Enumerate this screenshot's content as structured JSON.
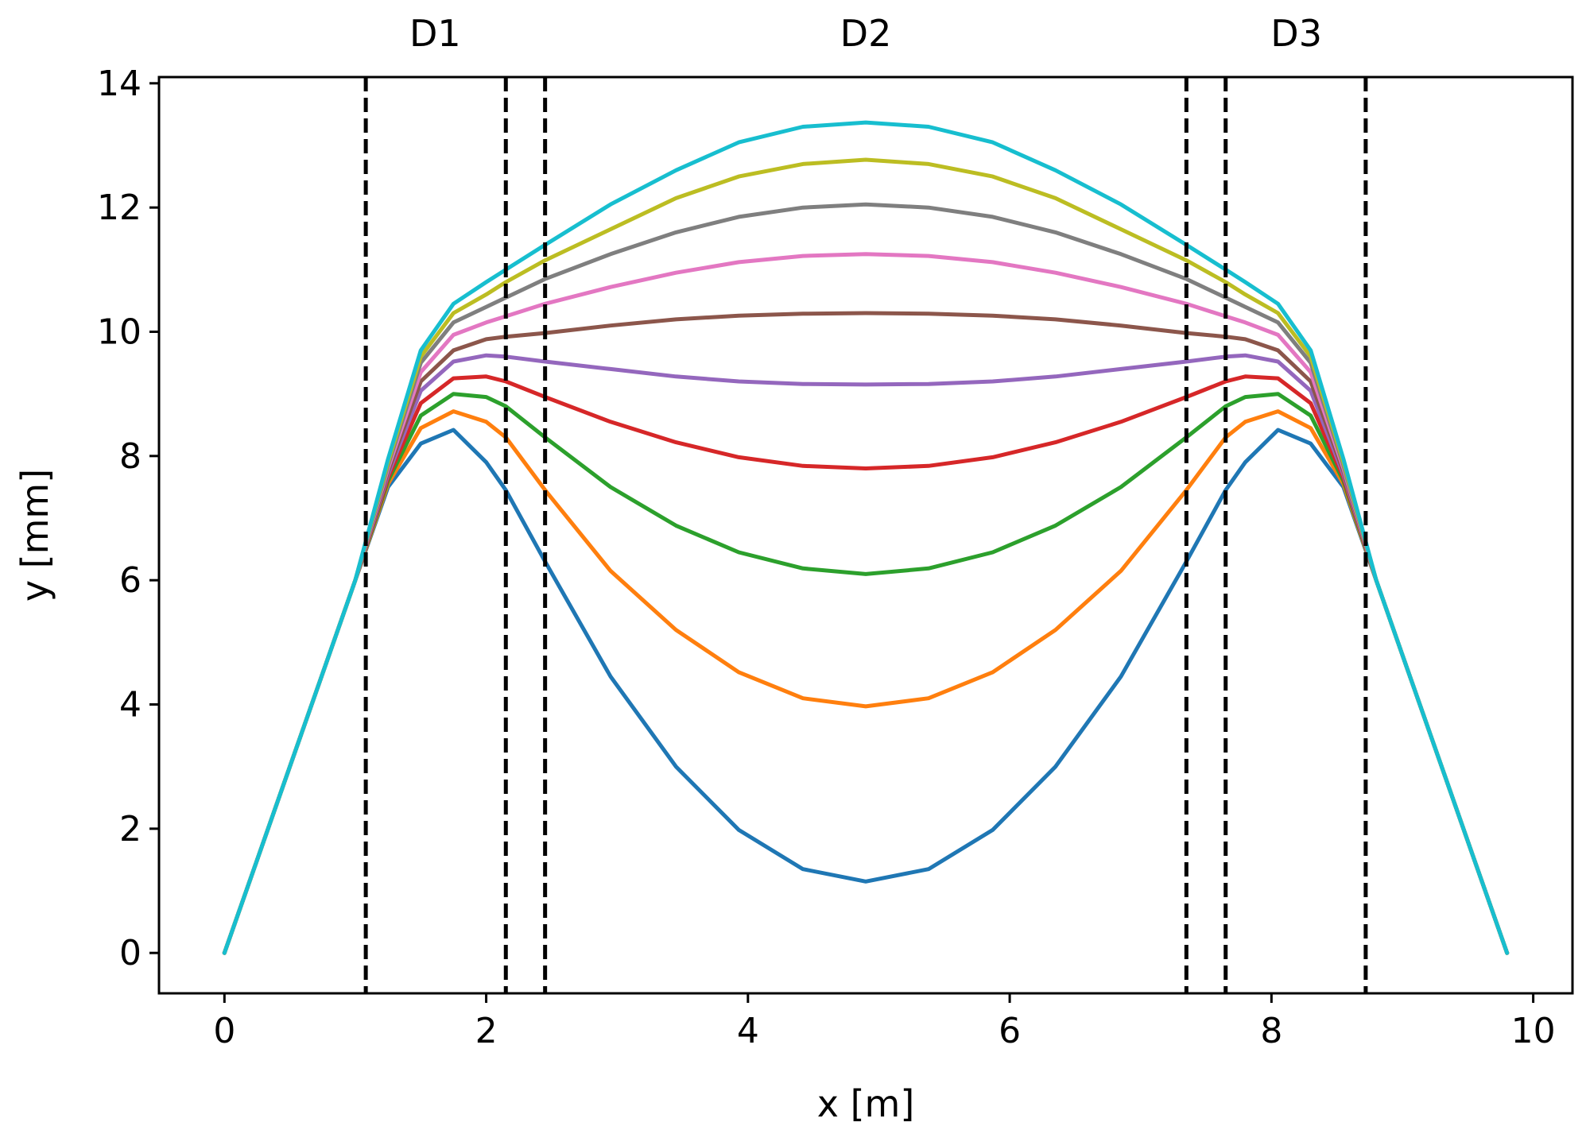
{
  "chart_data": {
    "type": "line",
    "title": "",
    "xlabel": "x [m]",
    "ylabel": "y [mm]",
    "xlim": [
      -0.5,
      10.3
    ],
    "ylim": [
      -0.65,
      14.1
    ],
    "xticks": [
      "0",
      "2",
      "4",
      "6",
      "8",
      "10"
    ],
    "yticks": [
      "0",
      "2",
      "4",
      "6",
      "8",
      "10",
      "12",
      "14"
    ],
    "grid": false,
    "legend": "none",
    "x": [
      0,
      0.25,
      0.5,
      0.75,
      1.0,
      1.25,
      1.5,
      1.75,
      2.0,
      2.15,
      2.45,
      2.95,
      3.45,
      3.93,
      4.42,
      4.9,
      5.38,
      5.87,
      6.35,
      6.85,
      7.35,
      7.65,
      7.8,
      8.05,
      8.3,
      8.55,
      8.8,
      9.05,
      9.3,
      9.55,
      9.8
    ],
    "series": [
      {
        "color": "#1f77b4",
        "values": [
          0,
          1.5,
          3.0,
          4.5,
          6.0,
          7.5,
          8.2,
          8.42,
          7.9,
          7.45,
          6.3,
          4.45,
          3.0,
          1.98,
          1.35,
          1.15,
          1.35,
          1.98,
          3.0,
          4.45,
          6.3,
          7.45,
          7.9,
          8.42,
          8.2,
          7.5,
          6.0,
          4.5,
          3.0,
          1.5,
          0
        ]
      },
      {
        "color": "#ff7f0e",
        "values": [
          0,
          1.5,
          3.0,
          4.5,
          6.0,
          7.55,
          8.45,
          8.72,
          8.55,
          8.3,
          7.45,
          6.15,
          5.2,
          4.52,
          4.1,
          3.97,
          4.1,
          4.52,
          5.2,
          6.15,
          7.45,
          8.3,
          8.55,
          8.72,
          8.45,
          7.55,
          6.0,
          4.5,
          3.0,
          1.5,
          0
        ]
      },
      {
        "color": "#2ca02c",
        "values": [
          0,
          1.5,
          3.0,
          4.5,
          6.0,
          7.6,
          8.65,
          9.0,
          8.95,
          8.8,
          8.3,
          7.5,
          6.88,
          6.45,
          6.19,
          6.1,
          6.19,
          6.45,
          6.88,
          7.5,
          8.3,
          8.8,
          8.95,
          9.0,
          8.65,
          7.6,
          6.0,
          4.5,
          3.0,
          1.5,
          0
        ]
      },
      {
        "color": "#d62728",
        "values": [
          0,
          1.5,
          3.0,
          4.5,
          6.0,
          7.65,
          8.85,
          9.25,
          9.28,
          9.2,
          8.95,
          8.55,
          8.22,
          7.98,
          7.84,
          7.8,
          7.84,
          7.98,
          8.22,
          8.55,
          8.95,
          9.2,
          9.28,
          9.25,
          8.85,
          7.65,
          6.0,
          4.5,
          3.0,
          1.5,
          0
        ]
      },
      {
        "color": "#9467bd",
        "values": [
          0,
          1.5,
          3.0,
          4.5,
          6.0,
          7.7,
          9.05,
          9.52,
          9.62,
          9.6,
          9.52,
          9.4,
          9.28,
          9.2,
          9.16,
          9.15,
          9.16,
          9.2,
          9.28,
          9.4,
          9.52,
          9.6,
          9.62,
          9.52,
          9.05,
          7.7,
          6.0,
          4.5,
          3.0,
          1.5,
          0
        ]
      },
      {
        "color": "#8c564b",
        "values": [
          0,
          1.5,
          3.0,
          4.5,
          6.0,
          7.75,
          9.2,
          9.7,
          9.88,
          9.92,
          9.98,
          10.1,
          10.2,
          10.26,
          10.29,
          10.3,
          10.29,
          10.26,
          10.2,
          10.1,
          9.98,
          9.92,
          9.88,
          9.7,
          9.2,
          7.75,
          6.0,
          4.5,
          3.0,
          1.5,
          0
        ]
      },
      {
        "color": "#e377c2",
        "values": [
          0,
          1.5,
          3.0,
          4.5,
          6.0,
          7.8,
          9.35,
          9.95,
          10.15,
          10.25,
          10.45,
          10.72,
          10.95,
          11.12,
          11.22,
          11.25,
          11.22,
          11.12,
          10.95,
          10.72,
          10.45,
          10.25,
          10.15,
          9.95,
          9.35,
          7.8,
          6.0,
          4.5,
          3.0,
          1.5,
          0
        ]
      },
      {
        "color": "#7f7f7f",
        "values": [
          0,
          1.5,
          3.0,
          4.5,
          6.0,
          7.85,
          9.5,
          10.15,
          10.4,
          10.55,
          10.85,
          11.25,
          11.6,
          11.85,
          12.0,
          12.05,
          12.0,
          11.85,
          11.6,
          11.25,
          10.85,
          10.55,
          10.4,
          10.15,
          9.5,
          7.85,
          6.0,
          4.5,
          3.0,
          1.5,
          0
        ]
      },
      {
        "color": "#bcbd22",
        "values": [
          0,
          1.5,
          3.0,
          4.5,
          6.0,
          7.9,
          9.6,
          10.3,
          10.6,
          10.8,
          11.15,
          11.65,
          12.15,
          12.5,
          12.7,
          12.77,
          12.7,
          12.5,
          12.15,
          11.65,
          11.15,
          10.8,
          10.6,
          10.3,
          9.6,
          7.9,
          6.0,
          4.5,
          3.0,
          1.5,
          0
        ]
      },
      {
        "color": "#17becf",
        "values": [
          0,
          1.5,
          3.0,
          4.5,
          6.0,
          7.95,
          9.7,
          10.45,
          10.8,
          11.0,
          11.4,
          12.05,
          12.6,
          13.05,
          13.3,
          13.37,
          13.3,
          13.05,
          12.6,
          12.05,
          11.4,
          11.0,
          10.8,
          10.45,
          9.7,
          7.95,
          6.0,
          4.5,
          3.0,
          1.5,
          0
        ]
      }
    ],
    "vlines": [
      1.08,
      2.15,
      2.45,
      7.35,
      7.65,
      8.72
    ],
    "region_labels": [
      {
        "text": "D1",
        "x": 1.61
      },
      {
        "text": "D2",
        "x": 4.9
      },
      {
        "text": "D3",
        "x": 8.19
      }
    ]
  }
}
